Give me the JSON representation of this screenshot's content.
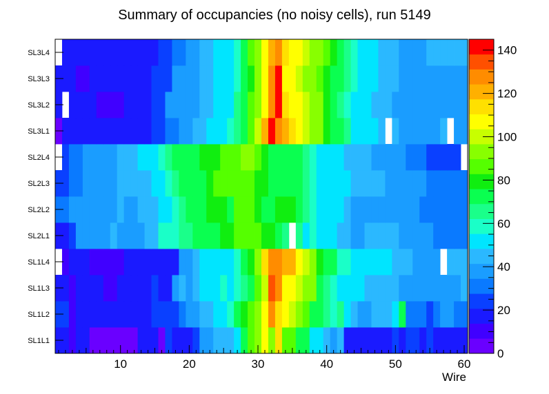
{
  "chart_data": {
    "type": "heatmap",
    "title": "Summary of occupancies (no noisy cells), run 5149",
    "xlabel": "Wire",
    "ylabel": "",
    "x_range": [
      0.5,
      60.5
    ],
    "x_ticks": [
      10,
      20,
      30,
      40,
      50,
      60
    ],
    "y_categories": [
      "SL1L1",
      "SL1L2",
      "SL1L3",
      "SL1L4",
      "SL2L1",
      "SL2L2",
      "SL2L3",
      "SL2L4",
      "SL3L1",
      "SL3L2",
      "SL3L3",
      "SL3L4"
    ],
    "z_range": [
      0,
      145
    ],
    "z_ticks": [
      0,
      20,
      40,
      60,
      80,
      100,
      120,
      140
    ],
    "colorscale": [
      "#6a00ff",
      "#4000ff",
      "#1a1aff",
      "#0a40ff",
      "#0a7aff",
      "#1a9dff",
      "#2bb8ff",
      "#00e5ff",
      "#1affc8",
      "#1aff8a",
      "#0aff50",
      "#10ee10",
      "#55ff00",
      "#88ff00",
      "#c8ff00",
      "#ffff00",
      "#ffe000",
      "#ffb000",
      "#ff8c00",
      "#ff5000",
      "#ff0000"
    ],
    "z": [
      [
        17,
        20,
        10,
        17,
        20,
        5,
        5,
        5,
        5,
        5,
        5,
        5,
        20,
        20,
        20,
        5,
        25,
        17,
        17,
        20,
        25,
        40,
        40,
        45,
        45,
        47,
        55,
        72,
        85,
        95,
        110,
        95,
        115,
        85,
        85,
        75,
        70,
        55,
        50,
        45,
        40,
        47,
        15,
        20,
        20,
        20,
        20,
        20,
        20,
        25,
        20,
        25,
        25,
        20,
        25,
        20,
        20,
        20,
        20,
        20
      ],
      [
        25,
        25,
        10,
        15,
        20,
        15,
        15,
        15,
        15,
        15,
        15,
        20,
        20,
        20,
        25,
        25,
        25,
        25,
        30,
        35,
        40,
        45,
        45,
        50,
        50,
        60,
        70,
        80,
        85,
        90,
        110,
        130,
        115,
        105,
        100,
        90,
        85,
        75,
        75,
        65,
        60,
        65,
        50,
        45,
        40,
        40,
        45,
        45,
        45,
        50,
        75,
        30,
        30,
        30,
        25,
        30,
        40,
        35,
        30,
        30
      ],
      [
        20,
        20,
        10,
        20,
        20,
        15,
        15,
        10,
        10,
        15,
        15,
        15,
        15,
        15,
        25,
        20,
        20,
        40,
        45,
        40,
        45,
        50,
        55,
        55,
        60,
        55,
        60,
        65,
        75,
        85,
        100,
        135,
        125,
        110,
        105,
        100,
        95,
        90,
        70,
        65,
        60,
        55,
        50,
        50,
        50,
        45,
        45,
        45,
        45,
        45,
        40,
        40,
        40,
        40,
        40,
        40,
        40,
        40,
        40,
        45
      ],
      [
        0,
        10,
        15,
        15,
        15,
        10,
        10,
        10,
        10,
        10,
        15,
        15,
        15,
        15,
        15,
        20,
        20,
        20,
        35,
        35,
        45,
        50,
        55,
        55,
        55,
        55,
        60,
        70,
        80,
        95,
        115,
        130,
        125,
        120,
        120,
        110,
        100,
        90,
        80,
        75,
        70,
        60,
        60,
        55,
        50,
        50,
        50,
        50,
        50,
        45,
        45,
        45,
        40,
        40,
        40,
        40,
        0,
        45,
        45,
        45
      ],
      [
        20,
        20,
        25,
        35,
        35,
        35,
        40,
        40,
        45,
        40,
        40,
        40,
        40,
        45,
        45,
        60,
        60,
        60,
        65,
        65,
        70,
        75,
        75,
        75,
        80,
        80,
        85,
        85,
        85,
        85,
        80,
        80,
        75,
        65,
        0,
        65,
        55,
        60,
        55,
        50,
        50,
        45,
        45,
        40,
        40,
        45,
        45,
        45,
        45,
        45,
        40,
        40,
        40,
        40,
        40,
        30,
        30,
        30,
        30,
        30
      ],
      [
        30,
        30,
        35,
        35,
        40,
        35,
        35,
        40,
        40,
        45,
        40,
        35,
        45,
        45,
        45,
        50,
        55,
        60,
        65,
        70,
        70,
        75,
        80,
        80,
        80,
        75,
        85,
        85,
        85,
        80,
        75,
        75,
        80,
        80,
        80,
        70,
        65,
        60,
        55,
        50,
        50,
        50,
        45,
        40,
        40,
        40,
        40,
        40,
        40,
        35,
        35,
        35,
        35,
        30,
        30,
        30,
        30,
        30,
        30,
        30
      ],
      [
        25,
        25,
        30,
        30,
        35,
        35,
        40,
        40,
        40,
        45,
        45,
        45,
        45,
        45,
        50,
        55,
        60,
        65,
        70,
        75,
        75,
        75,
        80,
        85,
        85,
        85,
        85,
        85,
        85,
        80,
        80,
        75,
        75,
        75,
        75,
        70,
        65,
        60,
        55,
        50,
        50,
        50,
        50,
        45,
        45,
        45,
        45,
        45,
        40,
        40,
        35,
        35,
        35,
        35,
        30,
        30,
        30,
        30,
        30,
        30
      ],
      [
        0,
        25,
        30,
        30,
        35,
        35,
        35,
        40,
        40,
        45,
        45,
        45,
        50,
        55,
        55,
        60,
        65,
        70,
        70,
        75,
        75,
        80,
        80,
        80,
        85,
        85,
        85,
        90,
        90,
        85,
        80,
        75,
        75,
        75,
        70,
        70,
        65,
        60,
        55,
        55,
        50,
        50,
        45,
        45,
        45,
        45,
        40,
        40,
        40,
        35,
        35,
        30,
        30,
        30,
        25,
        25,
        25,
        25,
        25,
        0
      ],
      [
        5,
        15,
        15,
        15,
        15,
        15,
        15,
        15,
        15,
        15,
        15,
        15,
        20,
        20,
        25,
        25,
        30,
        30,
        35,
        40,
        45,
        45,
        50,
        50,
        55,
        60,
        65,
        75,
        85,
        100,
        120,
        140,
        125,
        120,
        115,
        105,
        100,
        95,
        90,
        80,
        75,
        70,
        65,
        55,
        50,
        50,
        50,
        45,
        0,
        45,
        40,
        40,
        40,
        40,
        40,
        35,
        45,
        0,
        40,
        40
      ],
      [
        15,
        0,
        15,
        15,
        15,
        15,
        10,
        10,
        10,
        10,
        15,
        15,
        15,
        15,
        25,
        25,
        35,
        35,
        40,
        40,
        40,
        45,
        45,
        50,
        50,
        55,
        65,
        75,
        85,
        95,
        110,
        130,
        145,
        115,
        110,
        105,
        100,
        95,
        90,
        80,
        75,
        65,
        60,
        55,
        50,
        50,
        45,
        45,
        45,
        40,
        40,
        40,
        40,
        40,
        40,
        40,
        40,
        40,
        40,
        40
      ],
      [
        15,
        15,
        15,
        10,
        10,
        15,
        15,
        15,
        15,
        15,
        15,
        15,
        15,
        15,
        25,
        25,
        25,
        35,
        35,
        35,
        40,
        45,
        45,
        50,
        50,
        55,
        60,
        70,
        80,
        95,
        105,
        125,
        145,
        110,
        105,
        100,
        95,
        90,
        85,
        80,
        75,
        70,
        65,
        60,
        55,
        50,
        50,
        45,
        45,
        45,
        40,
        40,
        40,
        40,
        40,
        40,
        40,
        40,
        40,
        40
      ],
      [
        0,
        15,
        15,
        15,
        15,
        15,
        15,
        15,
        15,
        15,
        15,
        20,
        20,
        20,
        20,
        25,
        25,
        30,
        30,
        35,
        40,
        45,
        45,
        50,
        50,
        55,
        60,
        70,
        85,
        95,
        105,
        120,
        130,
        115,
        110,
        105,
        100,
        95,
        90,
        85,
        80,
        70,
        65,
        60,
        55,
        50,
        50,
        45,
        45,
        45,
        40,
        40,
        40,
        40,
        45,
        45,
        45,
        45,
        45,
        45
      ]
    ]
  }
}
